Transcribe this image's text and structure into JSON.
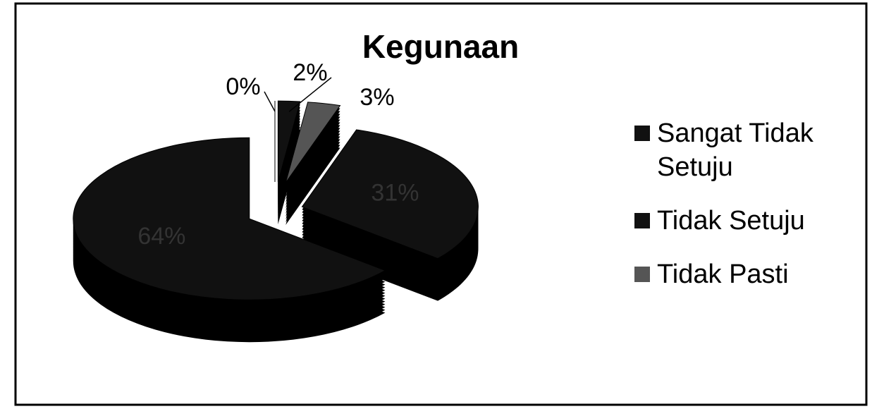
{
  "chart_data": {
    "type": "pie",
    "title": "Kegunaan",
    "categories": [
      "Sangat Tidak Setuju",
      "Tidak Setuju",
      "Tidak Pasti",
      null,
      null
    ],
    "values": [
      0,
      2,
      3,
      31,
      64
    ],
    "value_labels": [
      "0%",
      "2%",
      "3%",
      "31%",
      "64%"
    ],
    "colors": [
      "#111111",
      "#111111",
      "#555555",
      "#111111",
      "#111111"
    ],
    "legend": "right"
  }
}
